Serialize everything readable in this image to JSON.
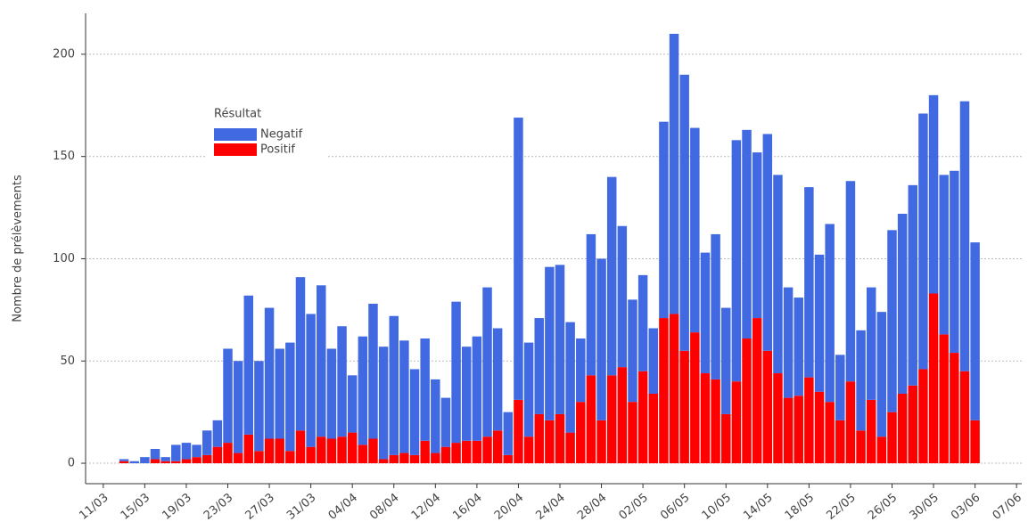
{
  "chart_data": {
    "type": "stacked-bar",
    "y_label": "Nombre de prélèvements",
    "legend_title": "Résultat",
    "legend_position": "upper-left",
    "categories": [
      "11/03",
      null,
      null,
      null,
      "15/03",
      null,
      null,
      null,
      "19/03",
      null,
      null,
      null,
      "23/03",
      null,
      null,
      null,
      "27/03",
      null,
      null,
      null,
      "31/03",
      null,
      null,
      null,
      "04/04",
      null,
      null,
      null,
      "08/04",
      null,
      null,
      null,
      "12/04",
      null,
      null,
      null,
      "16/04",
      null,
      null,
      null,
      "20/04",
      null,
      null,
      null,
      "24/04",
      null,
      null,
      null,
      "28/04",
      null,
      null,
      null,
      "02/05",
      null,
      null,
      null,
      "06/05",
      null,
      null,
      null,
      "10/05",
      null,
      null,
      null,
      "14/05",
      null,
      null,
      null,
      "18/05",
      null,
      null,
      null,
      "22/05",
      null,
      null,
      null,
      "26/05",
      null,
      null,
      null,
      "30/05",
      null,
      null,
      null,
      "03/06",
      null,
      null,
      null,
      "07/06"
    ],
    "series": [
      {
        "name": "Negatif",
        "color": "#4169e1",
        "values": [
          null,
          null,
          1,
          1,
          3,
          5,
          2,
          8,
          8,
          6,
          12,
          13,
          46,
          45,
          68,
          44,
          64,
          44,
          53,
          75,
          65,
          74,
          44,
          54,
          28,
          53,
          66,
          55,
          68,
          55,
          42,
          50,
          36,
          24,
          69,
          46,
          51,
          73,
          50,
          21,
          138,
          46,
          47,
          75,
          73,
          54,
          31,
          69,
          79,
          97,
          69,
          50,
          47,
          32,
          96,
          137,
          135,
          100,
          59,
          71,
          52,
          118,
          102,
          81,
          106,
          97,
          54,
          48,
          93,
          67,
          87,
          32,
          98,
          49,
          55,
          61,
          89,
          88,
          98,
          125,
          97,
          78,
          89,
          132,
          87,
          null,
          null,
          null,
          null
        ]
      },
      {
        "name": "Positif",
        "color": "#ff0000",
        "values": [
          null,
          null,
          1,
          0,
          0,
          2,
          1,
          1,
          2,
          3,
          4,
          8,
          10,
          5,
          14,
          6,
          12,
          12,
          6,
          16,
          8,
          13,
          12,
          13,
          15,
          9,
          12,
          2,
          4,
          5,
          4,
          11,
          5,
          8,
          10,
          11,
          11,
          13,
          16,
          4,
          31,
          13,
          24,
          21,
          24,
          15,
          30,
          43,
          21,
          43,
          47,
          30,
          45,
          34,
          71,
          73,
          55,
          64,
          44,
          41,
          24,
          40,
          61,
          71,
          55,
          44,
          32,
          33,
          42,
          35,
          30,
          21,
          40,
          16,
          31,
          13,
          25,
          34,
          38,
          46,
          83,
          63,
          54,
          45,
          21,
          null,
          null,
          null,
          null
        ]
      }
    ],
    "ylim": [
      -10,
      220
    ],
    "yticks": [
      0,
      50,
      100,
      150,
      200
    ],
    "grid": true
  }
}
